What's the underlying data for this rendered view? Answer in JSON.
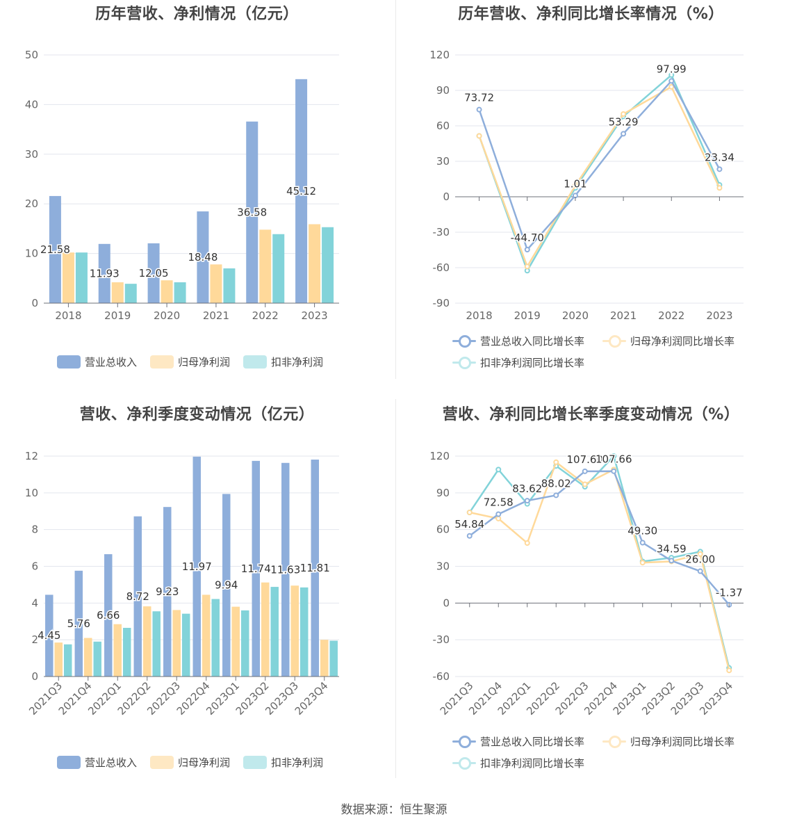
{
  "colors": {
    "revenue": "#8eaedb",
    "net_profit": "#ffd99a",
    "deducted_profit": "#82d3d9"
  },
  "footer": "数据来源：恒生聚源",
  "chart_data": [
    {
      "id": "annual-amount",
      "type": "bar",
      "title": "历年营收、净利情况（亿元）",
      "categories": [
        "2018",
        "2019",
        "2020",
        "2021",
        "2022",
        "2023"
      ],
      "ylim": [
        0,
        50
      ],
      "yticks": [
        0,
        10,
        20,
        30,
        40,
        50
      ],
      "series": [
        {
          "name": "营业总收入",
          "values": [
            21.58,
            11.93,
            12.05,
            18.48,
            36.58,
            45.12
          ],
          "labels": [
            "21.58",
            "11.93",
            "12.05",
            "18.48",
            "36.58",
            "45.12"
          ]
        },
        {
          "name": "归母净利润",
          "values": [
            10.2,
            4.2,
            4.6,
            7.8,
            14.8,
            15.9
          ]
        },
        {
          "name": "扣非净利润",
          "values": [
            10.2,
            3.9,
            4.2,
            7.0,
            13.9,
            15.3
          ]
        }
      ],
      "legend": "bottom"
    },
    {
      "id": "annual-growth",
      "type": "line",
      "title": "历年营收、净利同比增长率情况（%）",
      "categories": [
        "2018",
        "2019",
        "2020",
        "2021",
        "2022",
        "2023"
      ],
      "ylim": [
        -90,
        120
      ],
      "yticks": [
        -90,
        -60,
        -30,
        0,
        30,
        60,
        90,
        120
      ],
      "series": [
        {
          "name": "营业总收入同比增长率",
          "values": [
            73.72,
            -44.7,
            1.01,
            53.29,
            97.99,
            23.34
          ],
          "labels": [
            "73.72",
            "-44.70",
            "1.01",
            "53.29",
            "97.99",
            "23.34"
          ]
        },
        {
          "name": "归母净利润同比增长率",
          "values": [
            51.5,
            -59.0,
            9.5,
            70.0,
            93.0,
            7.5
          ]
        },
        {
          "name": "扣非净利润同比增长率",
          "values": [
            51.5,
            -62.5,
            7.5,
            68.0,
            103.0,
            10.0
          ]
        }
      ],
      "legend": "bottom"
    },
    {
      "id": "quarterly-amount",
      "type": "bar",
      "title": "营收、净利季度变动情况（亿元）",
      "categories": [
        "2021Q3",
        "2021Q4",
        "2022Q1",
        "2022Q2",
        "2022Q3",
        "2022Q4",
        "2023Q1",
        "2023Q2",
        "2023Q3",
        "2023Q4"
      ],
      "ylim": [
        0,
        12
      ],
      "yticks": [
        0,
        2,
        4,
        6,
        8,
        10,
        12
      ],
      "series": [
        {
          "name": "营业总收入",
          "values": [
            4.45,
            5.76,
            6.66,
            8.72,
            9.23,
            11.97,
            9.94,
            11.74,
            11.63,
            11.81
          ],
          "labels": [
            "4.45",
            "5.76",
            "6.66",
            "8.72",
            "9.23",
            "11.97",
            "9.94",
            "11.74",
            "11.63",
            "11.81"
          ]
        },
        {
          "name": "归母净利润",
          "values": [
            1.85,
            2.1,
            2.85,
            3.82,
            3.62,
            4.45,
            3.8,
            5.12,
            4.95,
            2.0
          ]
        },
        {
          "name": "扣非净利润",
          "values": [
            1.75,
            1.9,
            2.65,
            3.55,
            3.42,
            4.22,
            3.6,
            4.88,
            4.85,
            1.95
          ]
        }
      ],
      "legend": "bottom"
    },
    {
      "id": "quarterly-growth",
      "type": "line",
      "title": "营收、净利同比增长率季度变动情况（%）",
      "categories": [
        "2021Q3",
        "2021Q4",
        "2022Q1",
        "2022Q2",
        "2022Q3",
        "2022Q4",
        "2023Q1",
        "2023Q2",
        "2023Q3",
        "2023Q4"
      ],
      "ylim": [
        -60,
        120
      ],
      "yticks": [
        -60,
        -30,
        0,
        30,
        60,
        90,
        120
      ],
      "series": [
        {
          "name": "营业总收入同比增长率",
          "values": [
            54.84,
            72.58,
            83.62,
            88.02,
            107.6,
            107.66,
            49.3,
            34.59,
            26.0,
            -1.37
          ],
          "labels": [
            "54.84",
            "72.58",
            "83.62",
            "88.02",
            "107.60",
            "107.66",
            "49.30",
            "34.59",
            "26.00",
            "-1.37"
          ]
        },
        {
          "name": "归母净利润同比增长率",
          "values": [
            74.0,
            69.0,
            49.0,
            115.0,
            97.0,
            109.0,
            33.0,
            34.0,
            40.0,
            -55.0
          ]
        },
        {
          "name": "扣非净利润同比增长率",
          "values": [
            74.0,
            109.0,
            81.0,
            112.0,
            95.0,
            120.0,
            34.0,
            37.0,
            42.0,
            -53.0
          ]
        }
      ],
      "legend": "bottom"
    }
  ]
}
